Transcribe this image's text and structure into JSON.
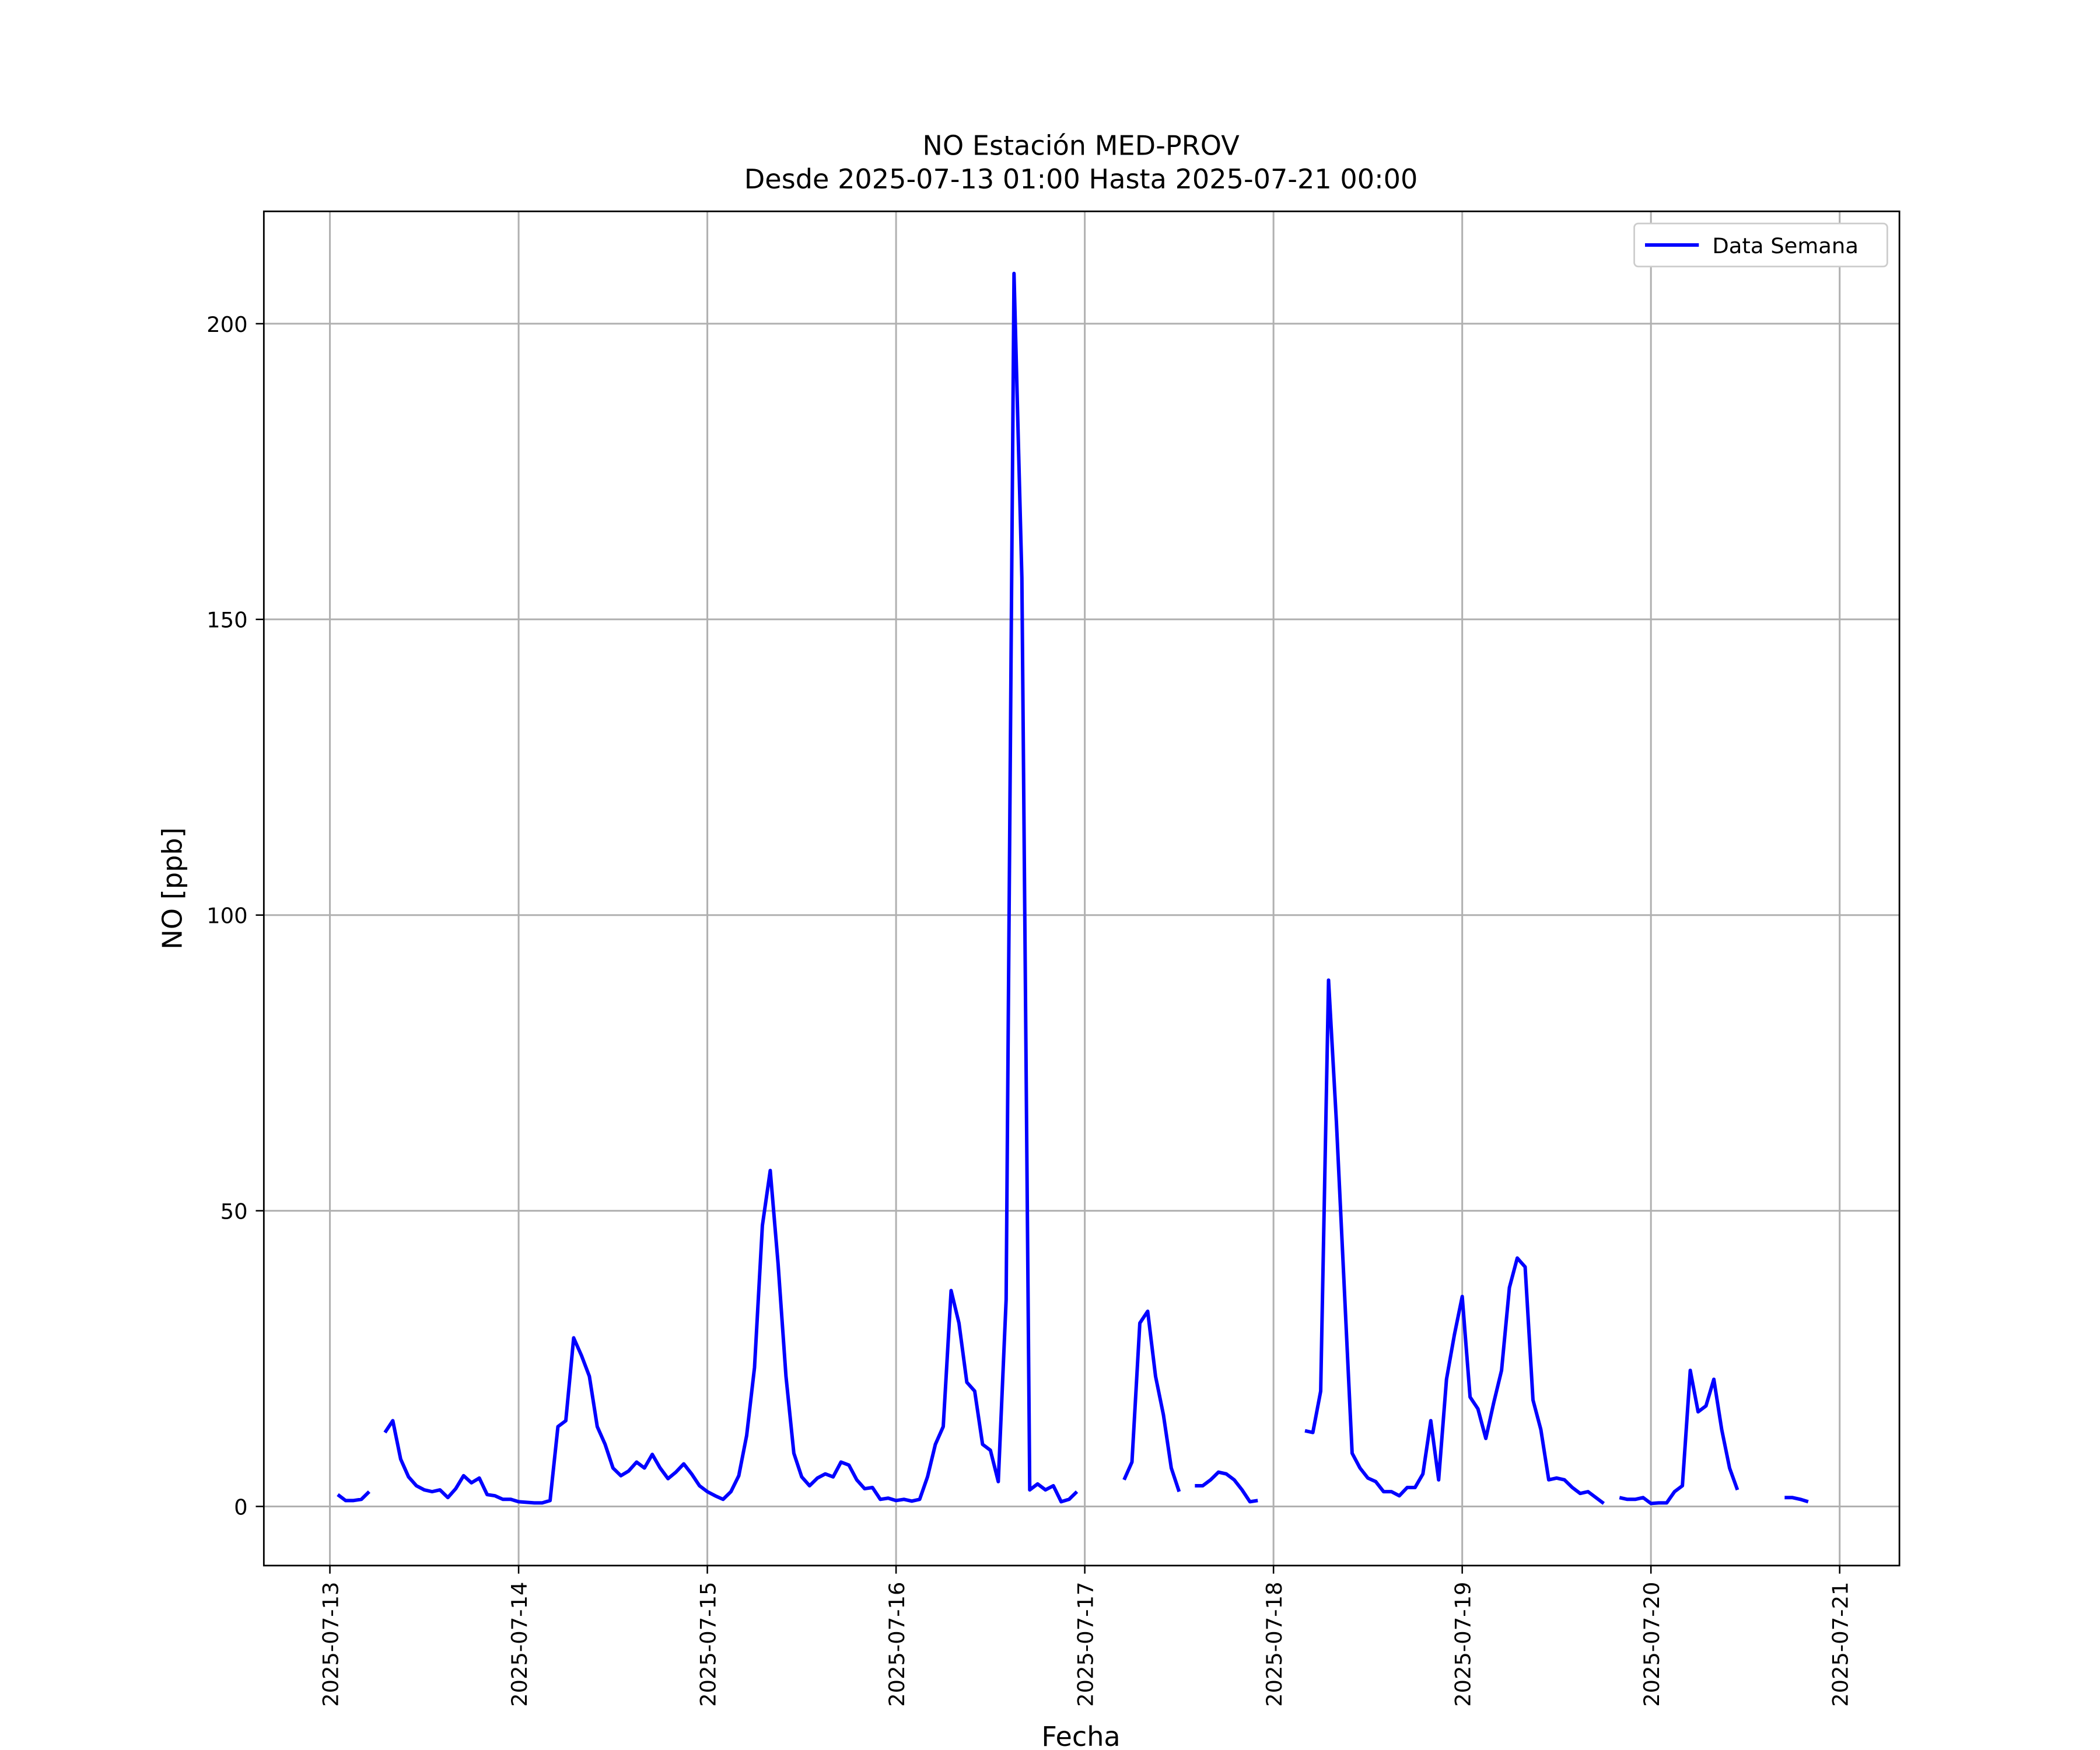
{
  "chart_data": {
    "type": "line",
    "title": "NO Estación MED-PROV",
    "subtitle": "Desde 2025-07-13 01:00 Hasta 2025-07-21 00:00",
    "xlabel": "Fecha",
    "ylabel": "NO [ppb]",
    "legend": "upper right",
    "grid": true,
    "xlim": [
      "2025-07-12 15:36",
      "2025-07-21 07:36"
    ],
    "xticks": [
      "2025-07-13",
      "2025-07-14",
      "2025-07-15",
      "2025-07-16",
      "2025-07-17",
      "2025-07-18",
      "2025-07-19",
      "2025-07-20",
      "2025-07-21"
    ],
    "ylim": [
      -10,
      219
    ],
    "yticks": [
      0,
      50,
      100,
      150,
      200
    ],
    "x": [
      "2025-07-13 01:00",
      "2025-07-13 02:00",
      "2025-07-13 03:00",
      "2025-07-13 04:00",
      "2025-07-13 05:00",
      "2025-07-13 06:00",
      "2025-07-13 07:00",
      "2025-07-13 08:00",
      "2025-07-13 09:00",
      "2025-07-13 10:00",
      "2025-07-13 11:00",
      "2025-07-13 12:00",
      "2025-07-13 13:00",
      "2025-07-13 14:00",
      "2025-07-13 15:00",
      "2025-07-13 16:00",
      "2025-07-13 17:00",
      "2025-07-13 18:00",
      "2025-07-13 19:00",
      "2025-07-13 20:00",
      "2025-07-13 21:00",
      "2025-07-13 22:00",
      "2025-07-13 23:00",
      "2025-07-14 00:00",
      "2025-07-14 01:00",
      "2025-07-14 02:00",
      "2025-07-14 03:00",
      "2025-07-14 04:00",
      "2025-07-14 05:00",
      "2025-07-14 06:00",
      "2025-07-14 07:00",
      "2025-07-14 08:00",
      "2025-07-14 09:00",
      "2025-07-14 10:00",
      "2025-07-14 11:00",
      "2025-07-14 12:00",
      "2025-07-14 13:00",
      "2025-07-14 14:00",
      "2025-07-14 15:00",
      "2025-07-14 16:00",
      "2025-07-14 17:00",
      "2025-07-14 18:00",
      "2025-07-14 19:00",
      "2025-07-14 20:00",
      "2025-07-14 21:00",
      "2025-07-14 22:00",
      "2025-07-14 23:00",
      "2025-07-15 00:00",
      "2025-07-15 01:00",
      "2025-07-15 02:00",
      "2025-07-15 03:00",
      "2025-07-15 04:00",
      "2025-07-15 05:00",
      "2025-07-15 06:00",
      "2025-07-15 07:00",
      "2025-07-15 08:00",
      "2025-07-15 09:00",
      "2025-07-15 10:00",
      "2025-07-15 11:00",
      "2025-07-15 12:00",
      "2025-07-15 13:00",
      "2025-07-15 14:00",
      "2025-07-15 15:00",
      "2025-07-15 16:00",
      "2025-07-15 17:00",
      "2025-07-15 18:00",
      "2025-07-15 19:00",
      "2025-07-15 20:00",
      "2025-07-15 21:00",
      "2025-07-15 22:00",
      "2025-07-15 23:00",
      "2025-07-16 00:00",
      "2025-07-16 01:00",
      "2025-07-16 02:00",
      "2025-07-16 03:00",
      "2025-07-16 04:00",
      "2025-07-16 05:00",
      "2025-07-16 06:00",
      "2025-07-16 07:00",
      "2025-07-16 08:00",
      "2025-07-16 09:00",
      "2025-07-16 10:00",
      "2025-07-16 11:00",
      "2025-07-16 12:00",
      "2025-07-16 13:00",
      "2025-07-16 14:00",
      "2025-07-16 15:00",
      "2025-07-16 16:00",
      "2025-07-16 17:00",
      "2025-07-16 18:00",
      "2025-07-16 19:00",
      "2025-07-16 20:00",
      "2025-07-16 21:00",
      "2025-07-16 22:00",
      "2025-07-16 23:00",
      "2025-07-17 00:00",
      "2025-07-17 01:00",
      "2025-07-17 02:00",
      "2025-07-17 03:00",
      "2025-07-17 04:00",
      "2025-07-17 05:00",
      "2025-07-17 06:00",
      "2025-07-17 07:00",
      "2025-07-17 08:00",
      "2025-07-17 09:00",
      "2025-07-17 10:00",
      "2025-07-17 11:00",
      "2025-07-17 12:00",
      "2025-07-17 13:00",
      "2025-07-17 14:00",
      "2025-07-17 15:00",
      "2025-07-17 16:00",
      "2025-07-17 17:00",
      "2025-07-17 18:00",
      "2025-07-17 19:00",
      "2025-07-17 20:00",
      "2025-07-17 21:00",
      "2025-07-17 22:00",
      "2025-07-17 23:00",
      "2025-07-18 00:00",
      "2025-07-18 01:00",
      "2025-07-18 02:00",
      "2025-07-18 03:00",
      "2025-07-18 04:00",
      "2025-07-18 05:00",
      "2025-07-18 06:00",
      "2025-07-18 07:00",
      "2025-07-18 08:00",
      "2025-07-18 09:00",
      "2025-07-18 10:00",
      "2025-07-18 11:00",
      "2025-07-18 12:00",
      "2025-07-18 13:00",
      "2025-07-18 14:00",
      "2025-07-18 15:00",
      "2025-07-18 16:00",
      "2025-07-18 17:00",
      "2025-07-18 18:00",
      "2025-07-18 19:00",
      "2025-07-18 20:00",
      "2025-07-18 21:00",
      "2025-07-18 22:00",
      "2025-07-18 23:00",
      "2025-07-19 00:00",
      "2025-07-19 01:00",
      "2025-07-19 02:00",
      "2025-07-19 03:00",
      "2025-07-19 04:00",
      "2025-07-19 05:00",
      "2025-07-19 06:00",
      "2025-07-19 07:00",
      "2025-07-19 08:00",
      "2025-07-19 09:00",
      "2025-07-19 10:00",
      "2025-07-19 11:00",
      "2025-07-19 12:00",
      "2025-07-19 13:00",
      "2025-07-19 14:00",
      "2025-07-19 15:00",
      "2025-07-19 16:00",
      "2025-07-19 17:00",
      "2025-07-19 18:00",
      "2025-07-19 19:00",
      "2025-07-19 20:00",
      "2025-07-19 21:00",
      "2025-07-19 22:00",
      "2025-07-19 23:00",
      "2025-07-20 00:00",
      "2025-07-20 01:00",
      "2025-07-20 02:00",
      "2025-07-20 03:00",
      "2025-07-20 04:00",
      "2025-07-20 05:00",
      "2025-07-20 06:00",
      "2025-07-20 07:00",
      "2025-07-20 08:00",
      "2025-07-20 09:00",
      "2025-07-20 10:00",
      "2025-07-20 11:00",
      "2025-07-20 12:00",
      "2025-07-20 13:00",
      "2025-07-20 14:00",
      "2025-07-20 15:00",
      "2025-07-20 16:00",
      "2025-07-20 17:00",
      "2025-07-20 18:00",
      "2025-07-20 19:00",
      "2025-07-20 20:00",
      "2025-07-20 21:00",
      "2025-07-20 22:00",
      "2025-07-20 23:00",
      "2025-07-21 00:00"
    ],
    "series": [
      {
        "name": "Data Semana",
        "color": "#0000ff",
        "values": [
          2,
          1,
          1,
          1.2,
          2.5,
          null,
          12.5,
          14.5,
          8,
          5,
          3.5,
          2.8,
          2.5,
          2.8,
          1.5,
          3,
          5.2,
          4,
          4.8,
          2,
          1.8,
          1.2,
          1.2,
          0.8,
          0.7,
          0.6,
          0.6,
          1,
          13.5,
          14.5,
          28.5,
          25.5,
          22,
          13.5,
          10.5,
          6.5,
          5.2,
          6,
          7.5,
          6.5,
          8.8,
          6.5,
          4.7,
          5.8,
          7.2,
          5.5,
          3.5,
          2.5,
          1.8,
          1.2,
          2.5,
          5.2,
          12,
          23.5,
          47.5,
          56.8,
          41,
          22,
          9,
          5,
          3.5,
          4.8,
          5.5,
          5,
          7.5,
          7,
          4.5,
          3,
          3.2,
          1.2,
          1.4,
          1,
          1.2,
          0.9,
          1.2,
          5,
          10.5,
          13.5,
          36.5,
          31,
          21,
          19.5,
          10.5,
          9.5,
          4.2,
          35,
          208.5,
          157,
          2.8,
          3.8,
          2.8,
          3.5,
          0.8,
          1.2,
          2.5,
          null,
          null,
          null,
          null,
          null,
          4.5,
          7.5,
          31,
          33,
          22,
          15.5,
          6.5,
          2.5,
          null,
          3.5,
          3.5,
          4.5,
          5.8,
          5.5,
          4.5,
          2.8,
          0.8,
          1,
          null,
          null,
          null,
          null,
          null,
          12.8,
          12.5,
          19.5,
          89,
          65,
          37,
          9,
          6.5,
          4.8,
          4.2,
          2.5,
          2.5,
          1.8,
          3.2,
          3.2,
          5.5,
          14.5,
          4.5,
          21.5,
          29,
          35.5,
          18.5,
          16.5,
          11.5,
          17.5,
          23,
          37,
          42,
          40.5,
          18,
          13,
          4.5,
          4.8,
          4.5,
          3.2,
          2.2,
          2.5,
          1.5,
          0.5,
          null,
          1.5,
          1.2,
          1.2,
          1.5,
          0.5,
          0.6,
          0.6,
          2.5,
          3.5,
          23,
          16,
          17,
          21.5,
          13,
          6.5,
          2.8,
          null,
          null,
          null,
          null,
          null,
          1.5,
          1.5,
          1.2,
          0.8,
          null,
          null,
          null,
          null
        ]
      }
    ]
  }
}
